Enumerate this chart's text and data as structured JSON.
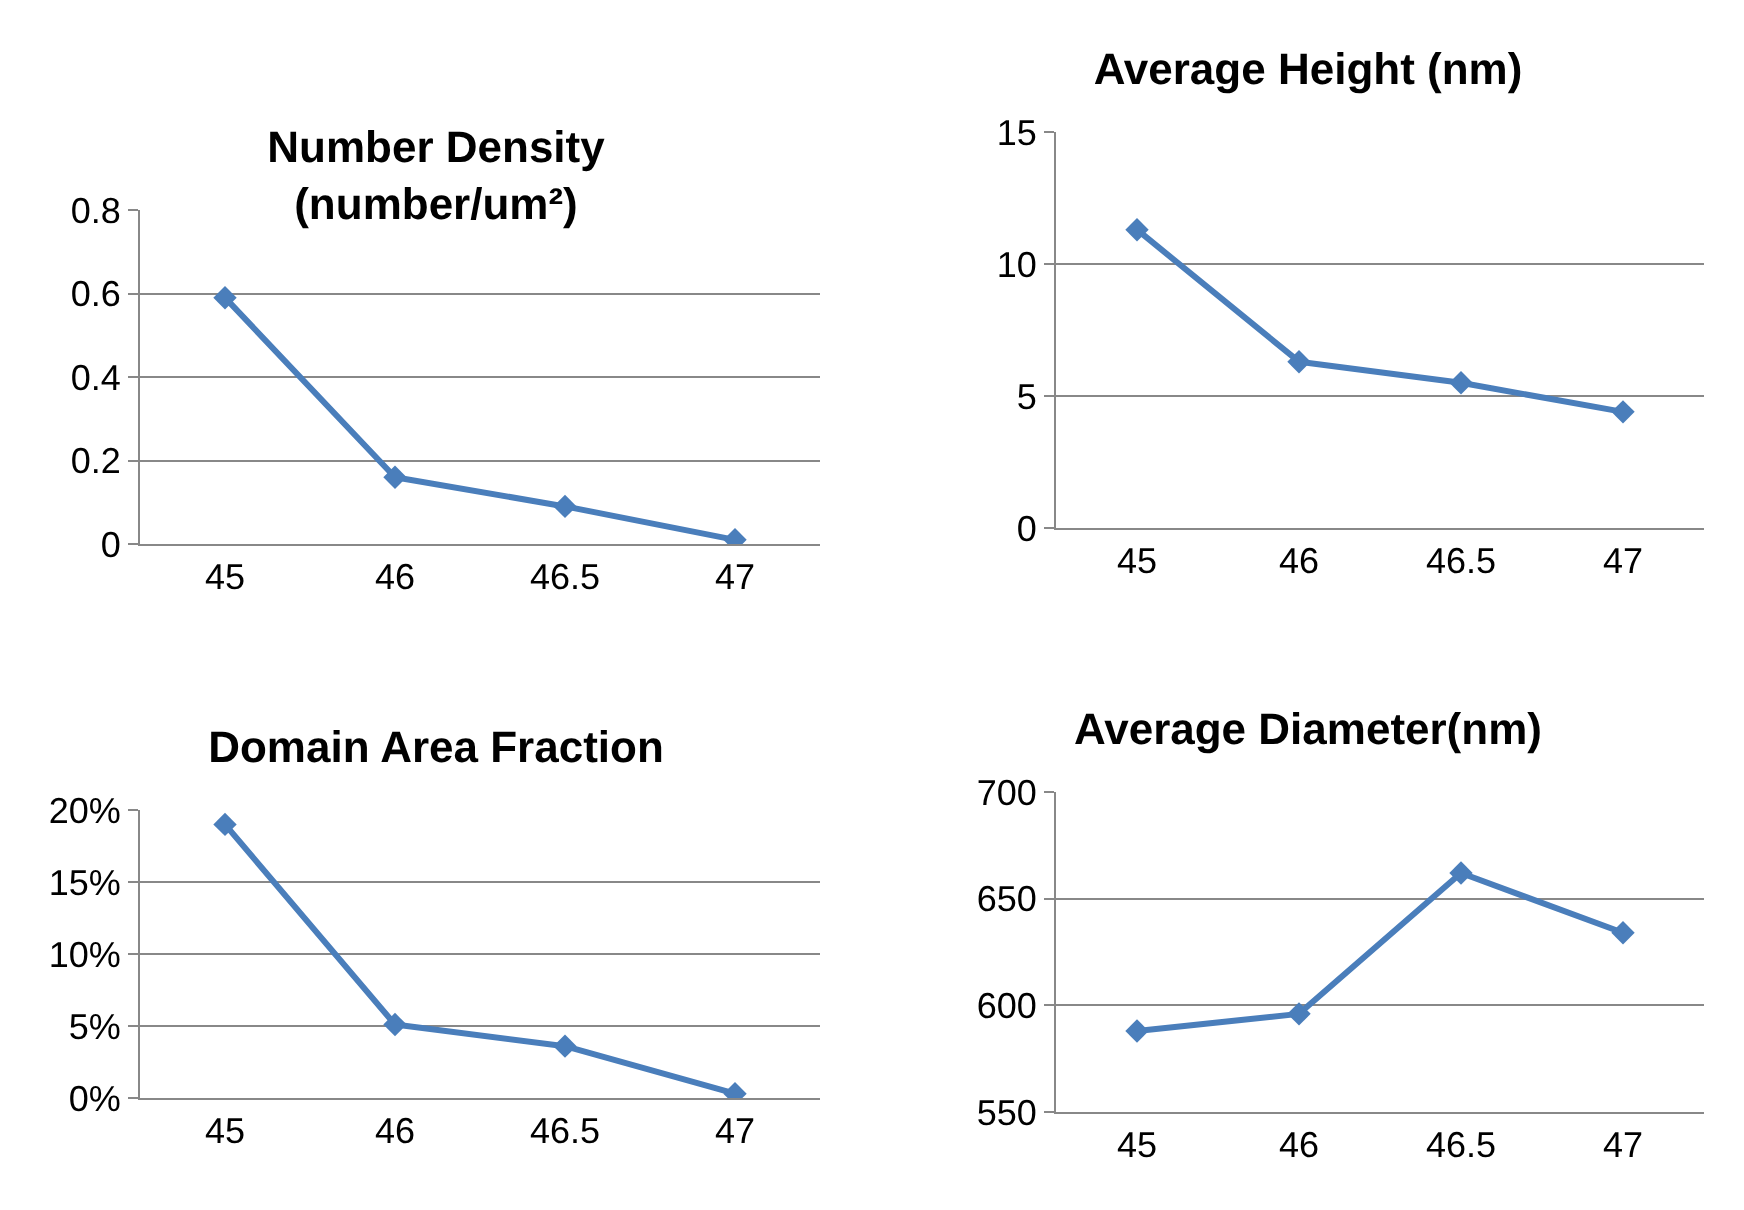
{
  "chart_data": [
    {
      "type": "line",
      "title": "Number Density\n(number/um²)",
      "categories": [
        "45",
        "46",
        "46.5",
        "47"
      ],
      "series": [
        {
          "color": "#4a7ebb",
          "values": [
            0.59,
            0.16,
            0.09,
            0.01
          ]
        }
      ],
      "ylim": [
        0,
        0.8
      ],
      "yticks": [
        0,
        0.2,
        0.4,
        0.6,
        0.8
      ],
      "grid": "y",
      "marker": "diamond",
      "line_style": "solid"
    },
    {
      "type": "line",
      "title": "Average Height (nm)",
      "categories": [
        "45",
        "46",
        "46.5",
        "47"
      ],
      "series": [
        {
          "color": "#4a7ebb",
          "values": [
            11.3,
            6.3,
            5.5,
            4.4
          ]
        }
      ],
      "ylim": [
        0,
        15
      ],
      "yticks": [
        0,
        5,
        10,
        15
      ],
      "grid": "y",
      "marker": "diamond",
      "line_style": "solid"
    },
    {
      "type": "line",
      "title": "Domain Area Fraction",
      "categories": [
        "45",
        "46",
        "46.5",
        "47"
      ],
      "series": [
        {
          "color": "#4a7ebb",
          "values": [
            19,
            5.1,
            3.6,
            0.3
          ]
        }
      ],
      "ylim": [
        0,
        20
      ],
      "yticks": [
        {
          "value": 0,
          "label": "0%"
        },
        {
          "value": 5,
          "label": "5%"
        },
        {
          "value": 10,
          "label": "10%"
        },
        {
          "value": 15,
          "label": "15%"
        },
        {
          "value": 20,
          "label": "20%"
        }
      ],
      "grid": "y",
      "marker": "diamond",
      "line_style": "solid"
    },
    {
      "type": "line",
      "title": "Average Diameter(nm)",
      "categories": [
        "45",
        "46",
        "46.5",
        "47"
      ],
      "series": [
        {
          "color": "#4a7ebb",
          "values": [
            588,
            596,
            662,
            634
          ]
        }
      ],
      "ylim": [
        550,
        700
      ],
      "yticks": [
        550,
        600,
        650,
        700
      ],
      "grid": "y",
      "marker": "diamond",
      "line_style": "solid"
    }
  ]
}
